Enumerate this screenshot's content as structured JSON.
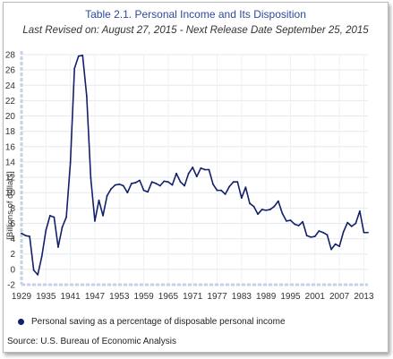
{
  "header": {
    "title": "Table 2.1. Personal Income and Its Disposition",
    "subtitle": "Last Revised on: August 27, 2015 - Next Release Date September 25, 2015"
  },
  "source": "Source: U.S. Bureau of Economic  Analysis",
  "colors": {
    "series": "#13206a",
    "title": "#2e4a9a",
    "axis": "#c5d3e4"
  },
  "chart_data": {
    "type": "line",
    "title": "Table 2.1. Personal Income and Its Disposition",
    "ylabel": "[Billions of dollars]",
    "xlabel": "",
    "ylim": [
      -2,
      28
    ],
    "xlim": [
      1929,
      2014
    ],
    "yticks": [
      -2,
      0,
      2,
      4,
      6,
      8,
      10,
      12,
      14,
      16,
      18,
      20,
      22,
      24,
      26,
      28
    ],
    "xticks": [
      1929,
      1935,
      1941,
      1947,
      1953,
      1959,
      1965,
      1971,
      1977,
      1983,
      1989,
      1995,
      2001,
      2007,
      2013
    ],
    "grid": true,
    "legend_position": "bottom",
    "series": [
      {
        "name": "Personal saving as a percentage of disposable personal income",
        "x": [
          1929,
          1930,
          1931,
          1932,
          1933,
          1934,
          1935,
          1936,
          1937,
          1938,
          1939,
          1940,
          1941,
          1942,
          1943,
          1944,
          1945,
          1946,
          1947,
          1948,
          1949,
          1950,
          1951,
          1952,
          1953,
          1954,
          1955,
          1956,
          1957,
          1958,
          1959,
          1960,
          1961,
          1962,
          1963,
          1964,
          1965,
          1966,
          1967,
          1968,
          1969,
          1970,
          1971,
          1972,
          1973,
          1974,
          1975,
          1976,
          1977,
          1978,
          1979,
          1980,
          1981,
          1982,
          1983,
          1984,
          1985,
          1986,
          1987,
          1988,
          1989,
          1990,
          1991,
          1992,
          1993,
          1994,
          1995,
          1996,
          1997,
          1998,
          1999,
          2000,
          2001,
          2002,
          2003,
          2004,
          2005,
          2006,
          2007,
          2008,
          2009,
          2010,
          2011,
          2012,
          2013,
          2014
        ],
        "values": [
          4.7,
          4.4,
          4.3,
          -0.1,
          -0.7,
          1.7,
          5.1,
          7.0,
          6.8,
          2.9,
          5.5,
          6.8,
          13.9,
          26.2,
          27.8,
          27.9,
          22.6,
          11.9,
          6.3,
          9.0,
          7.0,
          9.6,
          10.5,
          11.0,
          11.1,
          10.9,
          10.0,
          11.2,
          11.3,
          11.6,
          10.3,
          10.1,
          11.4,
          11.2,
          10.9,
          11.5,
          11.4,
          11.0,
          12.5,
          11.4,
          10.9,
          12.5,
          13.3,
          12.1,
          13.2,
          13.0,
          13.0,
          11.1,
          10.3,
          10.3,
          9.8,
          10.8,
          11.4,
          11.4,
          9.3,
          10.7,
          8.6,
          8.2,
          7.2,
          7.8,
          7.7,
          7.8,
          8.2,
          8.9,
          7.3,
          6.3,
          6.4,
          5.9,
          5.7,
          6.2,
          4.4,
          4.2,
          4.3,
          5.0,
          4.8,
          4.5,
          2.6,
          3.3,
          3.0,
          4.9,
          6.1,
          5.6,
          6.0,
          7.6,
          4.8,
          4.8
        ]
      }
    ]
  }
}
